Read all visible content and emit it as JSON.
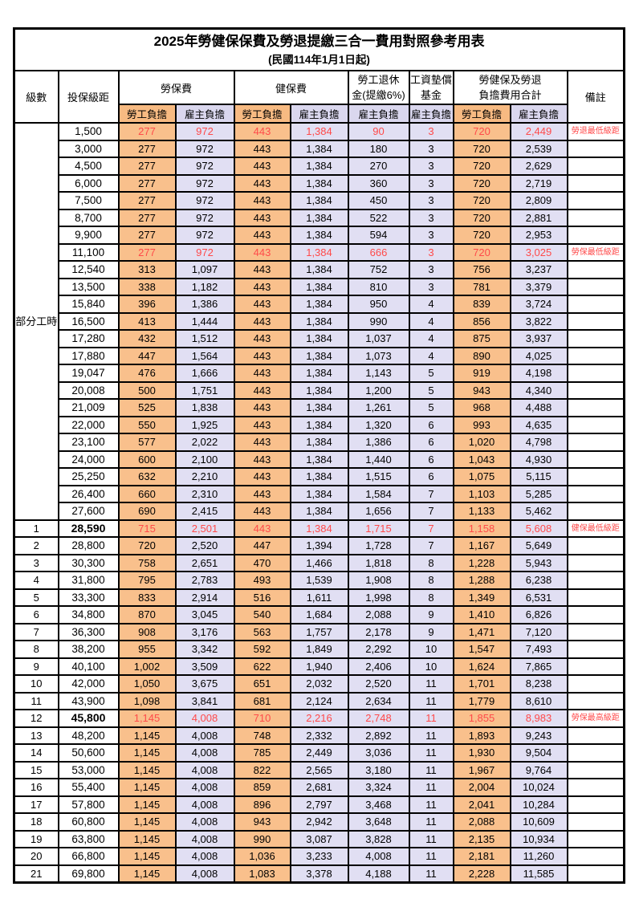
{
  "title": "2025年勞健保保費及勞退提繳三合一費用對照參考用表",
  "subtitle": "(民國114年1月1日起)",
  "header": {
    "level": "級數",
    "salary_bracket": "投保級距",
    "labor_fee": "勞保費",
    "health_fee": "健保費",
    "pension_line1": "勞工退休",
    "pension_line2": "金(提繳6%)",
    "arrear_line1": "工資墊償",
    "arrear_line2": "基金",
    "total_line1": "勞健保及勞退",
    "total_line2": "負擔費用合計",
    "note": "備註",
    "employee_burden": "勞工負擔",
    "employer_burden": "雇主負擔"
  },
  "part_time_label": "部分工時",
  "colors": {
    "employee_column_bg": "#F9C08C",
    "employer_column_bg": "#E1DFF3",
    "highlight_text": "#FF4A4A",
    "border": "#000000"
  },
  "row_fields": [
    "level",
    "salary",
    "labor_employee",
    "labor_employer",
    "health_employee",
    "health_employer",
    "pension_employer",
    "arrear_employer",
    "total_employee",
    "total_employer",
    "note",
    "red_highlight",
    "bold_salary"
  ],
  "rows": [
    [
      "",
      "1,500",
      "277",
      "972",
      "443",
      "1,384",
      "90",
      "3",
      "720",
      "2,449",
      "勞退最低級距",
      true,
      false
    ],
    [
      "",
      "3,000",
      "277",
      "972",
      "443",
      "1,384",
      "180",
      "3",
      "720",
      "2,539",
      "",
      false,
      false
    ],
    [
      "",
      "4,500",
      "277",
      "972",
      "443",
      "1,384",
      "270",
      "3",
      "720",
      "2,629",
      "",
      false,
      false
    ],
    [
      "",
      "6,000",
      "277",
      "972",
      "443",
      "1,384",
      "360",
      "3",
      "720",
      "2,719",
      "",
      false,
      false
    ],
    [
      "",
      "7,500",
      "277",
      "972",
      "443",
      "1,384",
      "450",
      "3",
      "720",
      "2,809",
      "",
      false,
      false
    ],
    [
      "",
      "8,700",
      "277",
      "972",
      "443",
      "1,384",
      "522",
      "3",
      "720",
      "2,881",
      "",
      false,
      false
    ],
    [
      "",
      "9,900",
      "277",
      "972",
      "443",
      "1,384",
      "594",
      "3",
      "720",
      "2,953",
      "",
      false,
      false
    ],
    [
      "",
      "11,100",
      "277",
      "972",
      "443",
      "1,384",
      "666",
      "3",
      "720",
      "3,025",
      "勞保最低級距",
      true,
      false
    ],
    [
      "",
      "12,540",
      "313",
      "1,097",
      "443",
      "1,384",
      "752",
      "3",
      "756",
      "3,237",
      "",
      false,
      false
    ],
    [
      "",
      "13,500",
      "338",
      "1,182",
      "443",
      "1,384",
      "810",
      "3",
      "781",
      "3,379",
      "",
      false,
      false
    ],
    [
      "",
      "15,840",
      "396",
      "1,386",
      "443",
      "1,384",
      "950",
      "4",
      "839",
      "3,724",
      "",
      false,
      false
    ],
    [
      "",
      "16,500",
      "413",
      "1,444",
      "443",
      "1,384",
      "990",
      "4",
      "856",
      "3,822",
      "",
      false,
      false
    ],
    [
      "",
      "17,280",
      "432",
      "1,512",
      "443",
      "1,384",
      "1,037",
      "4",
      "875",
      "3,937",
      "",
      false,
      false
    ],
    [
      "",
      "17,880",
      "447",
      "1,564",
      "443",
      "1,384",
      "1,073",
      "4",
      "890",
      "4,025",
      "",
      false,
      false
    ],
    [
      "",
      "19,047",
      "476",
      "1,666",
      "443",
      "1,384",
      "1,143",
      "5",
      "919",
      "4,198",
      "",
      false,
      false
    ],
    [
      "",
      "20,008",
      "500",
      "1,751",
      "443",
      "1,384",
      "1,200",
      "5",
      "943",
      "4,340",
      "",
      false,
      false
    ],
    [
      "",
      "21,009",
      "525",
      "1,838",
      "443",
      "1,384",
      "1,261",
      "5",
      "968",
      "4,488",
      "",
      false,
      false
    ],
    [
      "",
      "22,000",
      "550",
      "1,925",
      "443",
      "1,384",
      "1,320",
      "6",
      "993",
      "4,635",
      "",
      false,
      false
    ],
    [
      "",
      "23,100",
      "577",
      "2,022",
      "443",
      "1,384",
      "1,386",
      "6",
      "1,020",
      "4,798",
      "",
      false,
      false
    ],
    [
      "",
      "24,000",
      "600",
      "2,100",
      "443",
      "1,384",
      "1,440",
      "6",
      "1,043",
      "4,930",
      "",
      false,
      false
    ],
    [
      "",
      "25,250",
      "632",
      "2,210",
      "443",
      "1,384",
      "1,515",
      "6",
      "1,075",
      "5,115",
      "",
      false,
      false
    ],
    [
      "",
      "26,400",
      "660",
      "2,310",
      "443",
      "1,384",
      "1,584",
      "7",
      "1,103",
      "5,285",
      "",
      false,
      false
    ],
    [
      "",
      "27,600",
      "690",
      "2,415",
      "443",
      "1,384",
      "1,656",
      "7",
      "1,133",
      "5,462",
      "",
      false,
      false
    ],
    [
      "1",
      "28,590",
      "715",
      "2,501",
      "443",
      "1,384",
      "1,715",
      "7",
      "1,158",
      "5,608",
      "健保最低級距",
      true,
      true
    ],
    [
      "2",
      "28,800",
      "720",
      "2,520",
      "447",
      "1,394",
      "1,728",
      "7",
      "1,167",
      "5,649",
      "",
      false,
      false
    ],
    [
      "3",
      "30,300",
      "758",
      "2,651",
      "470",
      "1,466",
      "1,818",
      "8",
      "1,228",
      "5,943",
      "",
      false,
      false
    ],
    [
      "4",
      "31,800",
      "795",
      "2,783",
      "493",
      "1,539",
      "1,908",
      "8",
      "1,288",
      "6,238",
      "",
      false,
      false
    ],
    [
      "5",
      "33,300",
      "833",
      "2,914",
      "516",
      "1,611",
      "1,998",
      "8",
      "1,349",
      "6,531",
      "",
      false,
      false
    ],
    [
      "6",
      "34,800",
      "870",
      "3,045",
      "540",
      "1,684",
      "2,088",
      "9",
      "1,410",
      "6,826",
      "",
      false,
      false
    ],
    [
      "7",
      "36,300",
      "908",
      "3,176",
      "563",
      "1,757",
      "2,178",
      "9",
      "1,471",
      "7,120",
      "",
      false,
      false
    ],
    [
      "8",
      "38,200",
      "955",
      "3,342",
      "592",
      "1,849",
      "2,292",
      "10",
      "1,547",
      "7,493",
      "",
      false,
      false
    ],
    [
      "9",
      "40,100",
      "1,002",
      "3,509",
      "622",
      "1,940",
      "2,406",
      "10",
      "1,624",
      "7,865",
      "",
      false,
      false
    ],
    [
      "10",
      "42,000",
      "1,050",
      "3,675",
      "651",
      "2,032",
      "2,520",
      "11",
      "1,701",
      "8,238",
      "",
      false,
      false
    ],
    [
      "11",
      "43,900",
      "1,098",
      "3,841",
      "681",
      "2,124",
      "2,634",
      "11",
      "1,779",
      "8,610",
      "",
      false,
      false
    ],
    [
      "12",
      "45,800",
      "1,145",
      "4,008",
      "710",
      "2,216",
      "2,748",
      "11",
      "1,855",
      "8,983",
      "勞保最高級距",
      true,
      true
    ],
    [
      "13",
      "48,200",
      "1,145",
      "4,008",
      "748",
      "2,332",
      "2,892",
      "11",
      "1,893",
      "9,243",
      "",
      false,
      false
    ],
    [
      "14",
      "50,600",
      "1,145",
      "4,008",
      "785",
      "2,449",
      "3,036",
      "11",
      "1,930",
      "9,504",
      "",
      false,
      false
    ],
    [
      "15",
      "53,000",
      "1,145",
      "4,008",
      "822",
      "2,565",
      "3,180",
      "11",
      "1,967",
      "9,764",
      "",
      false,
      false
    ],
    [
      "16",
      "55,400",
      "1,145",
      "4,008",
      "859",
      "2,681",
      "3,324",
      "11",
      "2,004",
      "10,024",
      "",
      false,
      false
    ],
    [
      "17",
      "57,800",
      "1,145",
      "4,008",
      "896",
      "2,797",
      "3,468",
      "11",
      "2,041",
      "10,284",
      "",
      false,
      false
    ],
    [
      "18",
      "60,800",
      "1,145",
      "4,008",
      "943",
      "2,942",
      "3,648",
      "11",
      "2,088",
      "10,609",
      "",
      false,
      false
    ],
    [
      "19",
      "63,800",
      "1,145",
      "4,008",
      "990",
      "3,087",
      "3,828",
      "11",
      "2,135",
      "10,934",
      "",
      false,
      false
    ],
    [
      "20",
      "66,800",
      "1,145",
      "4,008",
      "1,036",
      "3,233",
      "4,008",
      "11",
      "2,181",
      "11,260",
      "",
      false,
      false
    ],
    [
      "21",
      "69,800",
      "1,145",
      "4,008",
      "1,083",
      "3,378",
      "4,188",
      "11",
      "2,228",
      "11,585",
      "",
      false,
      false
    ]
  ]
}
